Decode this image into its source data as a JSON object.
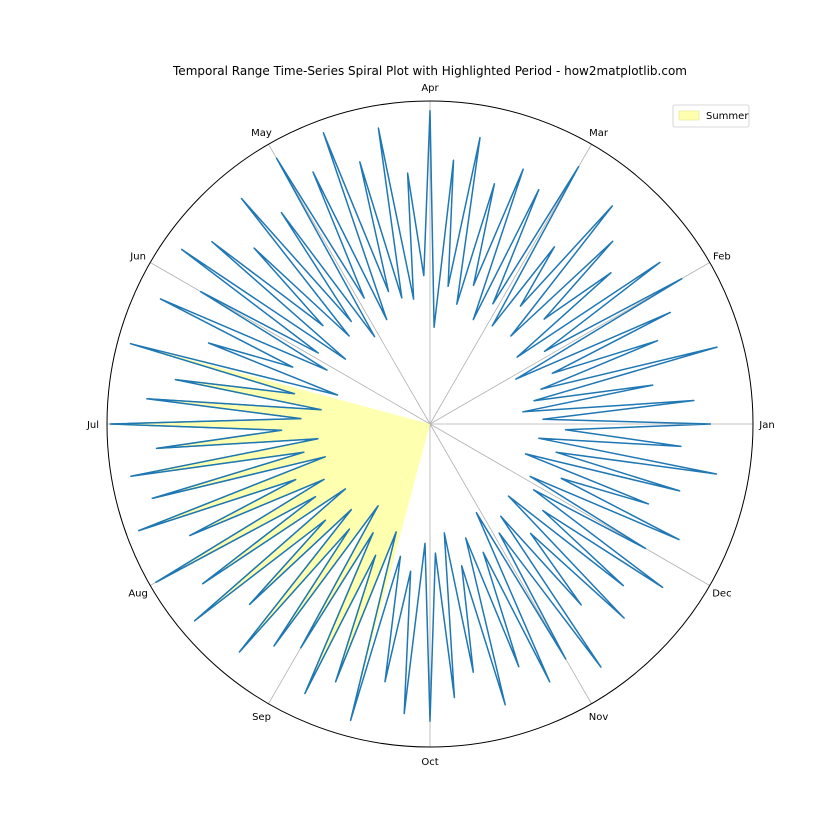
{
  "chart_data": {
    "type": "line",
    "projection": "polar",
    "title": "Temporal Range Time-Series Spiral Plot with Highlighted Period - how2matplotlib.com",
    "angle_labels": [
      "Jan",
      "Feb",
      "Mar",
      "Apr",
      "May",
      "Jun",
      "Jul",
      "Aug",
      "Sep",
      "Oct",
      "Nov",
      "Dec"
    ],
    "angle_direction": "counterclockwise",
    "start_angle": "east",
    "radial_ticks_shown": false,
    "grid": true,
    "rlim": [
      0,
      1
    ],
    "legend": {
      "entries": [
        "Summer"
      ],
      "placement": "top-right"
    },
    "highlight": {
      "name": "Summer",
      "color": "#ffffb0",
      "edge_color": "#2ca02c",
      "start_month": 5.5,
      "end_month": 8.5
    },
    "series": [
      {
        "color": "#1f77b4",
        "points": [
          [
            0.0,
            0.87
          ],
          [
            0.08,
            0.35
          ],
          [
            0.17,
            0.82
          ],
          [
            0.25,
            0.29
          ],
          [
            0.33,
            0.7
          ],
          [
            0.42,
            0.33
          ],
          [
            0.5,
            0.92
          ],
          [
            0.58,
            0.36
          ],
          [
            0.67,
            0.75
          ],
          [
            0.75,
            0.41
          ],
          [
            0.83,
            0.82
          ],
          [
            0.92,
            0.3
          ],
          [
            1.0,
            0.9
          ],
          [
            1.08,
            0.42
          ],
          [
            1.17,
            0.87
          ],
          [
            1.25,
            0.34
          ],
          [
            1.33,
            0.73
          ],
          [
            1.42,
            0.48
          ],
          [
            1.5,
            0.8
          ],
          [
            1.58,
            0.37
          ],
          [
            1.67,
            0.88
          ],
          [
            1.75,
            0.46
          ],
          [
            1.83,
            0.67
          ],
          [
            1.92,
            0.36
          ],
          [
            2.0,
            0.92
          ],
          [
            2.08,
            0.42
          ],
          [
            2.17,
            0.8
          ],
          [
            2.25,
            0.35
          ],
          [
            2.33,
            0.84
          ],
          [
            2.42,
            0.45
          ],
          [
            2.5,
            0.77
          ],
          [
            2.58,
            0.38
          ],
          [
            2.67,
            0.9
          ],
          [
            2.75,
            0.43
          ],
          [
            2.83,
            0.82
          ],
          [
            2.92,
            0.3
          ],
          [
            3.0,
            0.97
          ],
          [
            3.08,
            0.46
          ],
          [
            3.17,
            0.78
          ],
          [
            3.25,
            0.39
          ],
          [
            3.33,
            0.93
          ],
          [
            3.42,
            0.4
          ],
          [
            3.5,
            0.84
          ],
          [
            3.58,
            0.43
          ],
          [
            3.67,
            0.96
          ],
          [
            3.75,
            0.35
          ],
          [
            3.83,
            0.86
          ],
          [
            3.92,
            0.44
          ],
          [
            4.0,
            0.95
          ],
          [
            4.08,
            0.32
          ],
          [
            4.17,
            0.8
          ],
          [
            4.25,
            0.4
          ],
          [
            4.33,
            0.91
          ],
          [
            4.42,
            0.37
          ],
          [
            4.5,
            0.77
          ],
          [
            4.58,
            0.45
          ],
          [
            4.67,
            0.88
          ],
          [
            4.75,
            0.33
          ],
          [
            4.83,
            0.94
          ],
          [
            4.92,
            0.41
          ],
          [
            5.0,
            0.82
          ],
          [
            5.08,
            0.36
          ],
          [
            5.17,
            0.92
          ],
          [
            5.25,
            0.46
          ],
          [
            5.33,
            0.73
          ],
          [
            5.42,
            0.3
          ],
          [
            5.5,
            0.96
          ],
          [
            5.58,
            0.43
          ],
          [
            5.67,
            0.8
          ],
          [
            5.75,
            0.34
          ],
          [
            5.83,
            0.88
          ],
          [
            5.92,
            0.4
          ],
          [
            6.0,
            0.99
          ],
          [
            6.08,
            0.46
          ],
          [
            6.17,
            0.85
          ],
          [
            6.25,
            0.35
          ],
          [
            6.33,
            0.94
          ],
          [
            6.42,
            0.4
          ],
          [
            6.5,
            0.89
          ],
          [
            6.58,
            0.34
          ],
          [
            6.67,
            0.96
          ],
          [
            6.75,
            0.45
          ],
          [
            6.83,
            0.82
          ],
          [
            6.92,
            0.37
          ],
          [
            7.0,
            0.98
          ],
          [
            7.08,
            0.42
          ],
          [
            7.17,
            0.86
          ],
          [
            7.25,
            0.33
          ],
          [
            7.33,
            0.95
          ],
          [
            7.42,
            0.44
          ],
          [
            7.5,
            0.79
          ],
          [
            7.58,
            0.36
          ],
          [
            7.67,
            0.92
          ],
          [
            7.75,
            0.41
          ],
          [
            7.83,
            0.84
          ],
          [
            7.92,
            0.3
          ],
          [
            8.0,
            0.8
          ],
          [
            8.08,
            0.38
          ],
          [
            8.17,
            0.92
          ],
          [
            8.25,
            0.44
          ],
          [
            8.33,
            0.85
          ],
          [
            8.42,
            0.35
          ],
          [
            8.5,
            0.95
          ],
          [
            8.58,
            0.42
          ],
          [
            8.67,
            0.81
          ],
          [
            8.75,
            0.46
          ],
          [
            8.83,
            0.9
          ],
          [
            8.92,
            0.37
          ],
          [
            9.0,
            0.92
          ],
          [
            9.08,
            0.4
          ],
          [
            9.17,
            0.85
          ],
          [
            9.25,
            0.34
          ],
          [
            9.33,
            0.78
          ],
          [
            9.42,
            0.45
          ],
          [
            9.5,
            0.9
          ],
          [
            9.58,
            0.37
          ],
          [
            9.67,
            0.8
          ],
          [
            9.75,
            0.43
          ],
          [
            9.83,
            0.88
          ],
          [
            9.92,
            0.31
          ],
          [
            10.0,
            0.84
          ],
          [
            10.08,
            0.4
          ],
          [
            10.17,
            0.92
          ],
          [
            10.25,
            0.36
          ],
          [
            10.33,
            0.73
          ],
          [
            10.42,
            0.46
          ],
          [
            10.5,
            0.85
          ],
          [
            10.58,
            0.33
          ],
          [
            10.67,
            0.78
          ],
          [
            10.75,
            0.44
          ],
          [
            10.83,
            0.88
          ],
          [
            10.92,
            0.38
          ],
          [
            11.0,
            0.77
          ],
          [
            11.08,
            0.35
          ],
          [
            11.17,
            0.85
          ],
          [
            11.25,
            0.44
          ],
          [
            11.33,
            0.72
          ],
          [
            11.42,
            0.31
          ],
          [
            11.5,
            0.8
          ],
          [
            11.58,
            0.4
          ],
          [
            11.67,
            0.9
          ],
          [
            11.75,
            0.34
          ],
          [
            11.83,
            0.78
          ],
          [
            11.92,
            0.42
          ],
          [
            12.0,
            0.87
          ]
        ]
      }
    ]
  },
  "colors": {
    "line": "#1f77b4",
    "highlight_fill": "#ffffb0",
    "highlight_edge": "#2ca02c",
    "grid": "#b0b0b0",
    "frame": "#000000"
  }
}
